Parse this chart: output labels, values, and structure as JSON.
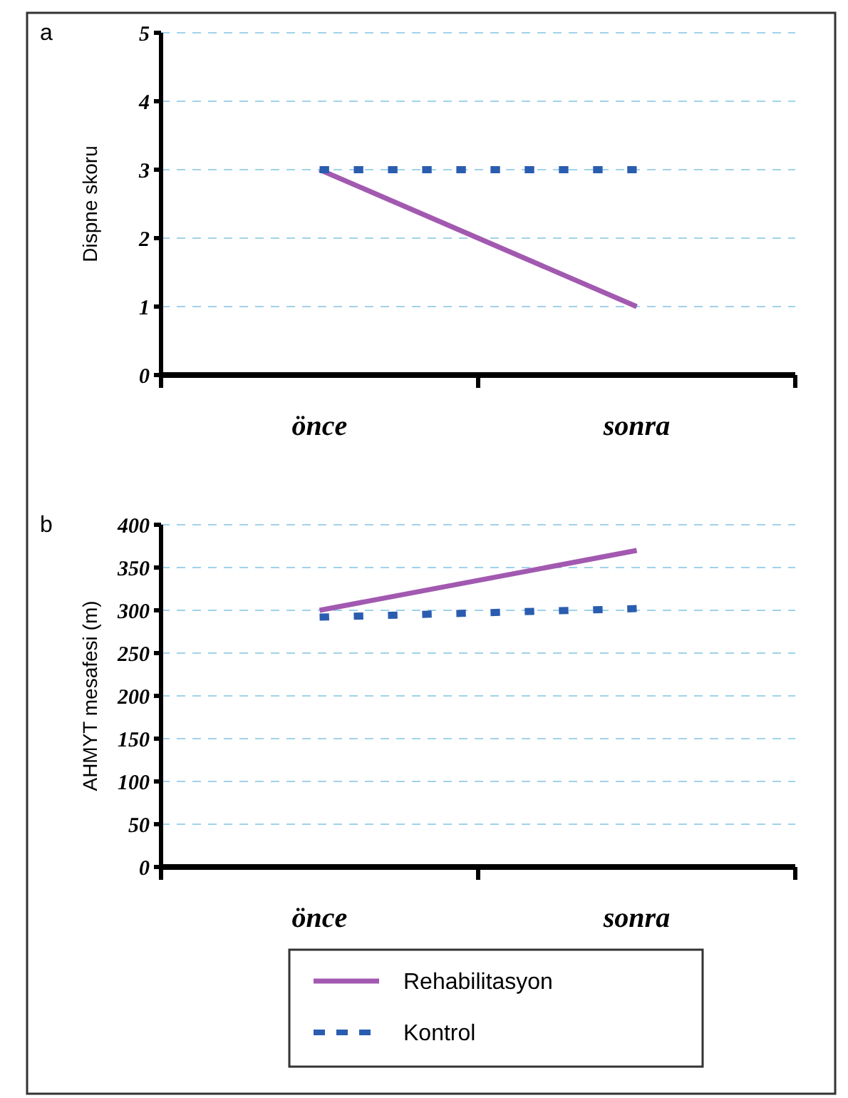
{
  "chart_data": [
    {
      "type": "line",
      "title": "a",
      "ylabel": "Dispne skoru",
      "categories": [
        "önce",
        "sonra"
      ],
      "ylim": [
        0,
        5
      ],
      "yticks": [
        0,
        1,
        2,
        3,
        4,
        5
      ],
      "grid": "y",
      "legend": false,
      "marker": "none",
      "series": [
        {
          "color": "#a259b0",
          "line_style": "solid",
          "values": [
            3,
            1
          ]
        },
        {
          "color": "#2a5db0",
          "line_style": "dotted",
          "values": [
            3,
            3
          ]
        }
      ]
    },
    {
      "type": "line",
      "title": "b",
      "ylabel": "AHMYT mesafesi  (m)",
      "categories": [
        "önce",
        "sonra"
      ],
      "ylim": [
        0,
        400
      ],
      "yticks": [
        0,
        50,
        100,
        150,
        200,
        250,
        300,
        350,
        400
      ],
      "grid": "y",
      "legend": "bottom",
      "marker": "none",
      "series": [
        {
          "name": "Rehabilitasyon",
          "color": "#a259b0",
          "line_style": "solid",
          "values": [
            300,
            370
          ]
        },
        {
          "name": "Kontrol",
          "color": "#2a5db0",
          "line_style": "dotted",
          "values": [
            292,
            302
          ]
        }
      ]
    }
  ]
}
